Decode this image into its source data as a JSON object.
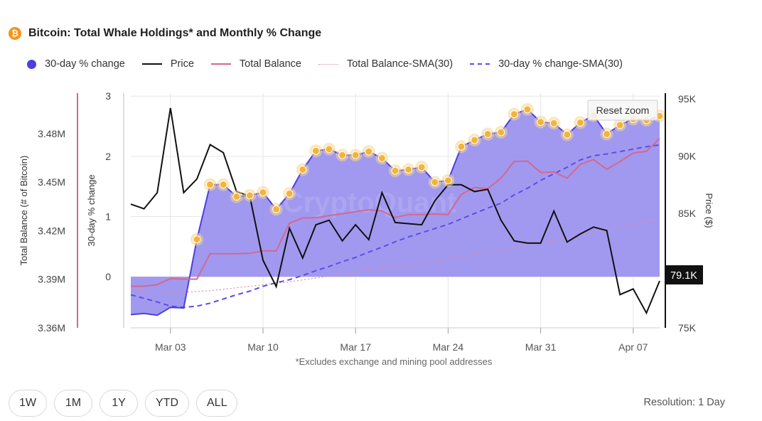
{
  "header": {
    "icon_symbol": "₿",
    "title": "Bitcoin: Total Whale Holdings* and Monthly % Change"
  },
  "legend": [
    {
      "label": "30-day % change",
      "swatch": "dot",
      "color": "#4d3fe0"
    },
    {
      "label": "Price",
      "swatch": "line",
      "color": "#111111"
    },
    {
      "label": "Total Balance",
      "swatch": "line",
      "color": "#d4688f"
    },
    {
      "label": "Total Balance-SMA(30)",
      "swatch": "dotted",
      "color": "#e08aa4"
    },
    {
      "label": "30-day % change-SMA(30)",
      "swatch": "dashed",
      "color": "#5b4ee6"
    }
  ],
  "controls": {
    "reset_zoom": "Reset zoom",
    "ranges": [
      "1W",
      "1M",
      "1Y",
      "YTD",
      "ALL"
    ],
    "resolution": "Resolution: 1 Day"
  },
  "watermark": "CryptoQuant",
  "footnote": "*Excludes exchange and mining pool addresses",
  "chart_data": {
    "type": "line",
    "x_dates": [
      "2025-02-28",
      "2025-03-01",
      "2025-03-02",
      "2025-03-03",
      "2025-03-04",
      "2025-03-05",
      "2025-03-06",
      "2025-03-07",
      "2025-03-08",
      "2025-03-09",
      "2025-03-10",
      "2025-03-11",
      "2025-03-12",
      "2025-03-13",
      "2025-03-14",
      "2025-03-15",
      "2025-03-16",
      "2025-03-17",
      "2025-03-18",
      "2025-03-19",
      "2025-03-20",
      "2025-03-21",
      "2025-03-22",
      "2025-03-23",
      "2025-03-24",
      "2025-03-25",
      "2025-03-26",
      "2025-03-27",
      "2025-03-28",
      "2025-03-29",
      "2025-03-30",
      "2025-03-31",
      "2025-04-01",
      "2025-04-02",
      "2025-04-03",
      "2025-04-04",
      "2025-04-05",
      "2025-04-06",
      "2025-04-07",
      "2025-04-08",
      "2025-04-09"
    ],
    "x_ticks": [
      "Mar 03",
      "Mar 10",
      "Mar 17",
      "Mar 24",
      "Mar 31",
      "Apr 07"
    ],
    "xlabel": "",
    "axes": {
      "total_balance": {
        "label": "Total Balance (# of Bitcoin)",
        "ticks": [
          "3.36M",
          "3.39M",
          "3.42M",
          "3.45M",
          "3.48M"
        ],
        "range": [
          3.36,
          3.505
        ]
      },
      "pct_change": {
        "label": "30-day % change",
        "ticks": [
          "0",
          "1",
          "2",
          "3"
        ],
        "range": [
          -0.85,
          3.05
        ]
      },
      "price": {
        "label": "Price ($)",
        "ticks": [
          "75K",
          "80K",
          "85K",
          "90K",
          "95K"
        ],
        "range": [
          75,
          95.5
        ]
      }
    },
    "grid": true,
    "legend_position": "top",
    "price_label": "79.1K",
    "series": [
      {
        "name": "30-day % change",
        "axis": "pct_change",
        "style": "area",
        "color": "#4d3fe0",
        "values": [
          -0.63,
          -0.61,
          -0.64,
          -0.51,
          -0.52,
          0.62,
          1.53,
          1.53,
          1.33,
          1.35,
          1.4,
          1.12,
          1.38,
          1.78,
          2.09,
          2.12,
          2.02,
          2.02,
          2.08,
          1.97,
          1.76,
          1.78,
          1.82,
          1.57,
          1.6,
          2.16,
          2.27,
          2.37,
          2.4,
          2.7,
          2.78,
          2.57,
          2.55,
          2.36,
          2.56,
          2.68,
          2.37,
          2.52,
          2.62,
          2.6,
          2.67
        ]
      },
      {
        "name": "Price",
        "axis": "price",
        "style": "line",
        "color": "#111111",
        "values": [
          85.8,
          85.4,
          86.8,
          94.2,
          86.8,
          88.0,
          91.0,
          90.3,
          86.9,
          86.5,
          80.9,
          78.6,
          83.7,
          81.1,
          84.0,
          84.4,
          82.6,
          84.0,
          82.7,
          86.8,
          84.2,
          84.1,
          84.0,
          86.1,
          87.5,
          87.5,
          86.9,
          87.1,
          84.4,
          82.6,
          82.4,
          82.4,
          85.2,
          82.5,
          83.2,
          83.8,
          83.5,
          77.9,
          78.4,
          76.3,
          79.1
        ]
      },
      {
        "name": "Total Balance",
        "axis": "total_balance",
        "style": "line",
        "color": "#d4688f",
        "values": [
          3.3857,
          3.3857,
          3.3867,
          3.3904,
          3.3901,
          3.3901,
          3.4058,
          3.4058,
          3.4058,
          3.406,
          3.4075,
          3.4075,
          3.4247,
          3.4279,
          3.428,
          3.4294,
          3.4304,
          3.4318,
          3.433,
          3.4322,
          3.4281,
          3.43,
          3.43,
          3.4303,
          3.43,
          3.4425,
          3.4467,
          3.446,
          3.4525,
          3.4628,
          3.463,
          3.456,
          3.4563,
          3.4524,
          3.461,
          3.464,
          3.458,
          3.4627,
          3.468,
          3.469,
          3.477
        ]
      },
      {
        "name": "Total Balance-SMA(30)",
        "axis": "total_balance",
        "style": "dotted",
        "color": "#e08aa4",
        "values": [
          3.3835,
          3.3829,
          3.3825,
          3.3822,
          3.382,
          3.3825,
          3.383,
          3.3838,
          3.3848,
          3.3857,
          3.3866,
          3.3876,
          3.3884,
          3.3896,
          3.3908,
          3.392,
          3.3932,
          3.3944,
          3.3956,
          3.3966,
          3.3978,
          3.399,
          3.4001,
          3.4012,
          3.4024,
          3.4039,
          3.4052,
          3.4066,
          3.408,
          3.4098,
          3.4113,
          3.4128,
          3.4142,
          3.4157,
          3.4172,
          3.4188,
          3.4204,
          3.422,
          3.4237,
          3.4254,
          3.4272
        ]
      },
      {
        "name": "30-day % change-SMA(30)",
        "axis": "pct_change",
        "style": "dashed",
        "color": "#5b4ee6",
        "values": [
          -0.3,
          -0.36,
          -0.42,
          -0.49,
          -0.51,
          -0.49,
          -0.44,
          -0.37,
          -0.3,
          -0.24,
          -0.16,
          -0.1,
          -0.05,
          0.02,
          0.1,
          0.17,
          0.25,
          0.32,
          0.41,
          0.49,
          0.58,
          0.66,
          0.73,
          0.8,
          0.87,
          0.96,
          1.05,
          1.14,
          1.22,
          1.36,
          1.47,
          1.6,
          1.71,
          1.82,
          1.94,
          2.01,
          2.04,
          2.08,
          2.12,
          2.16,
          2.19
        ]
      }
    ]
  }
}
